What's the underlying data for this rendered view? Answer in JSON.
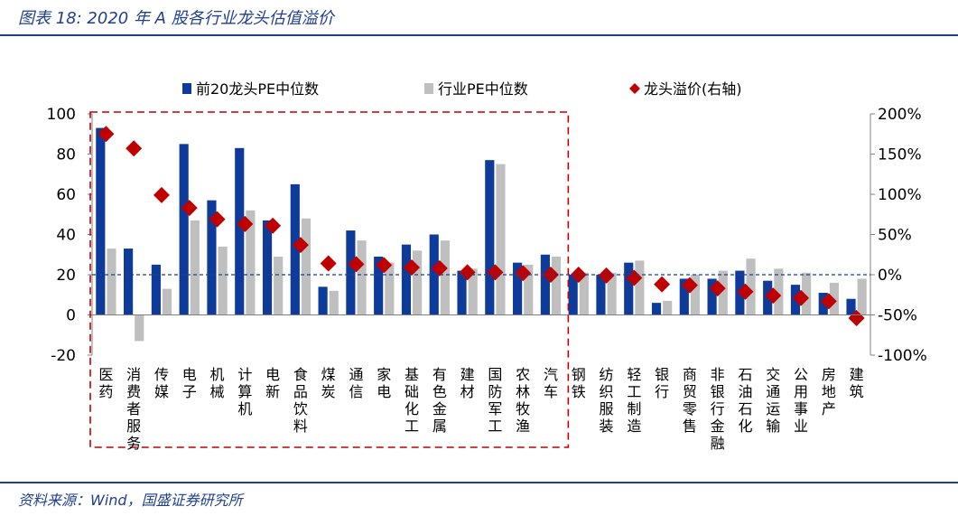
{
  "header": {
    "title": "图表 18:  2020 年 A 股各行业龙头估值溢价"
  },
  "footer": {
    "source": "资料来源：Wind，国盛证券研究所"
  },
  "colors": {
    "series1": "#0e3b99",
    "series2": "#bfbfbf",
    "series3": "#c00000",
    "dashed_box": "#c00000",
    "zero_line": "#1f3f8f",
    "title": "#1f3f8f"
  },
  "chart_data": {
    "type": "bar",
    "categories": [
      "医药",
      "消费者服务",
      "传媒",
      "电子",
      "机械",
      "计算机",
      "电新",
      "食品饮料",
      "煤炭",
      "通信",
      "家电",
      "基础化工",
      "有色金属",
      "建材",
      "国防军工",
      "农林牧渔",
      "汽车",
      "钢铁",
      "纺织服装",
      "轻工制造",
      "银行",
      "商贸零售",
      "非银行金融",
      "石油石化",
      "交通运输",
      "公用事业",
      "房地产",
      "建筑"
    ],
    "series": [
      {
        "name": "前20龙头PE中位数",
        "kind": "bar",
        "axis": "left",
        "values": [
          93,
          33,
          25,
          85,
          57,
          83,
          47,
          65,
          14,
          42,
          29,
          35,
          40,
          22,
          77,
          26,
          30,
          20,
          20,
          26,
          6,
          18,
          18,
          22,
          17,
          15,
          11,
          8
        ]
      },
      {
        "name": "行业PE中位数",
        "kind": "bar",
        "axis": "left",
        "values": [
          33,
          -13,
          13,
          47,
          34,
          52,
          29,
          48,
          12,
          37,
          26,
          32,
          37,
          23,
          75,
          25,
          29,
          21,
          21,
          27,
          7,
          20,
          22,
          28,
          23,
          21,
          16,
          18
        ]
      },
      {
        "name": "龙头溢价(右轴)",
        "kind": "marker",
        "axis": "right",
        "values": [
          175,
          157,
          99,
          83,
          69,
          63,
          61,
          37,
          14,
          13,
          12,
          9,
          8,
          3,
          3,
          2,
          0,
          0,
          -1,
          -4,
          -12,
          -13,
          -17,
          -21,
          -26,
          -29,
          -33,
          -54
        ]
      }
    ],
    "y_left": {
      "min": -20,
      "max": 100,
      "ticks": [
        -20,
        0,
        20,
        40,
        60,
        80,
        100
      ]
    },
    "y_right": {
      "min": -100,
      "max": 200,
      "ticks": [
        "200%",
        "150%",
        "100%",
        "50%",
        "0%",
        "-50%",
        "-100%"
      ]
    },
    "legend": "top",
    "highlight_range": [
      "医药",
      "汽车"
    ]
  }
}
